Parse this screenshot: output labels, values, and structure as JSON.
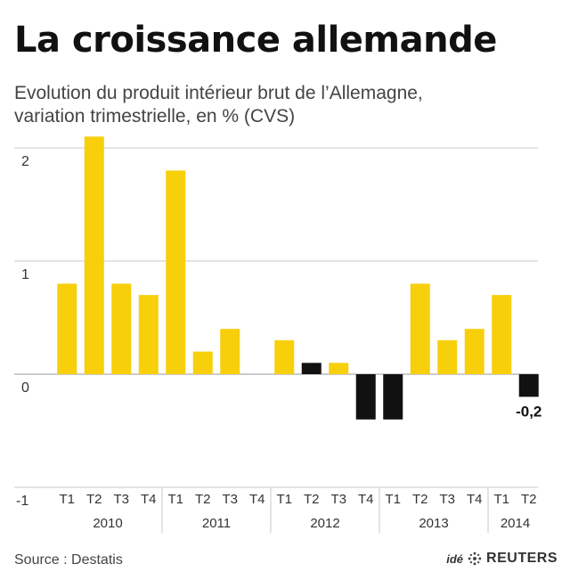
{
  "header": {
    "title": "La croissance allemande",
    "subtitle_line1": "Evolution du produit intérieur brut de l’Allemagne,",
    "subtitle_line2": "variation trimestrielle, en % (CVS)"
  },
  "footer": {
    "source": "Source : Destatis",
    "credit_prefix": "idé",
    "credit_brand": "REUTERS"
  },
  "colors": {
    "positive_bar": "#f8cf0b",
    "highlight_bar": "#111111",
    "gridline": "#c8c8c8",
    "axis": "#999999"
  },
  "chart_data": {
    "type": "bar",
    "title": "La croissance allemande",
    "subtitle": "Evolution du produit intérieur brut de l’Allemagne, variation trimestrielle, en % (CVS)",
    "xlabel": "",
    "ylabel": "",
    "ylim": [
      -1,
      2
    ],
    "yticks": [
      -1,
      0,
      1,
      2
    ],
    "grid": true,
    "categories": [
      "T1",
      "T2",
      "T3",
      "T4",
      "T1",
      "T2",
      "T3",
      "T4",
      "T1",
      "T2",
      "T3",
      "T4",
      "T1",
      "T2",
      "T3",
      "T4",
      "T1",
      "T2"
    ],
    "years": [
      {
        "label": "2010",
        "start": 0,
        "end": 3
      },
      {
        "label": "2011",
        "start": 4,
        "end": 7
      },
      {
        "label": "2012",
        "start": 8,
        "end": 11
      },
      {
        "label": "2013",
        "start": 12,
        "end": 15
      },
      {
        "label": "2014",
        "start": 16,
        "end": 17
      }
    ],
    "values": [
      0.8,
      2.1,
      0.8,
      0.7,
      1.8,
      0.2,
      0.4,
      0.0,
      0.3,
      0.1,
      0.1,
      -0.4,
      -0.4,
      0.8,
      0.3,
      0.4,
      0.7,
      -0.2
    ],
    "highlight": [
      false,
      false,
      false,
      false,
      false,
      false,
      false,
      false,
      false,
      true,
      false,
      true,
      true,
      false,
      false,
      false,
      false,
      true
    ],
    "annotations": [
      {
        "index": 17,
        "text": "-0,2"
      }
    ]
  }
}
